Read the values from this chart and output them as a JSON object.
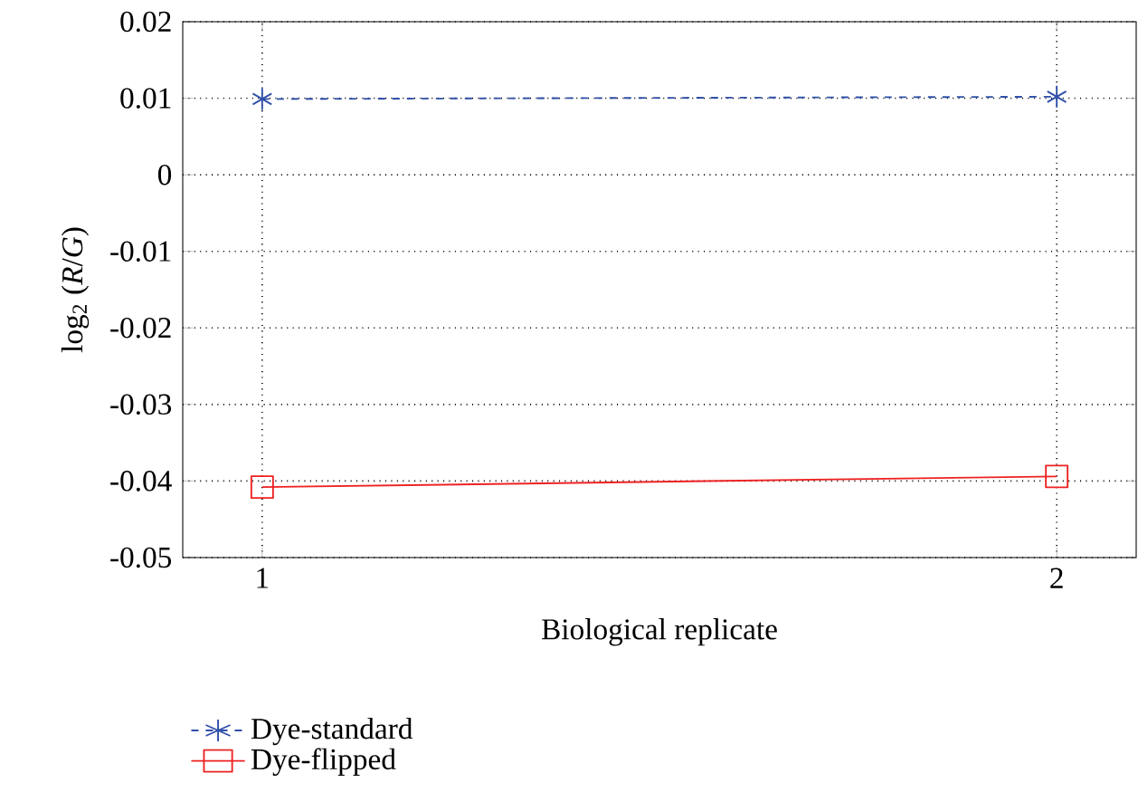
{
  "chart_data": {
    "type": "line",
    "xlabel": "Biological replicate",
    "ylabel": "log$_{2}$ (*R*/*G*)",
    "x": [
      1,
      2
    ],
    "xlim": [
      0.9,
      2.1
    ],
    "xticks": [
      1,
      2
    ],
    "ylim": [
      -0.05,
      0.02
    ],
    "yticks": [
      -0.05,
      -0.04,
      -0.03,
      -0.02,
      -0.01,
      0,
      0.01,
      0.02
    ],
    "grid": true,
    "legend": "bottom left",
    "series": [
      {
        "name": "Dye-standard",
        "color": "#2f4fa8",
        "values": [
          0.0099,
          0.0102
        ],
        "marker": "cross",
        "line_style": "dashed"
      },
      {
        "name": "Dye-flipped",
        "color": "#ee2222",
        "values": [
          -0.0408,
          -0.0394
        ],
        "marker": "square",
        "line_style": "solid"
      }
    ]
  }
}
